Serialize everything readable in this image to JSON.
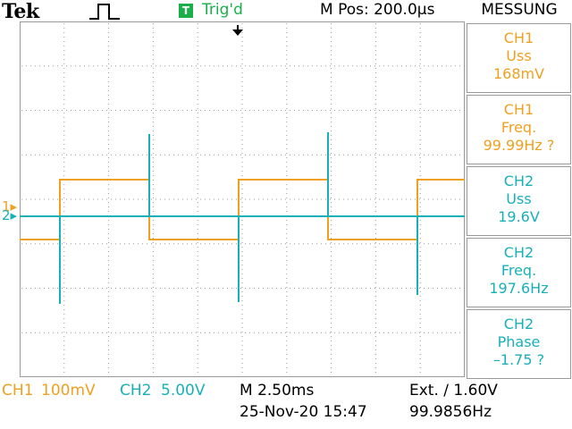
{
  "header": {
    "brand": "Tek",
    "trigger_status_icon": "T",
    "trigger_status": "Trig'd",
    "position": "M Pos: 200.0µs",
    "menu_title": "MESSUNG"
  },
  "colors": {
    "ch1": "#f0a020",
    "ch2": "#18b0b8",
    "trig": "#19b04a"
  },
  "measurements": [
    {
      "channel": "CH1",
      "label": "Uss",
      "value": "168mV"
    },
    {
      "channel": "CH1",
      "label": "Freq.",
      "value": "99.99Hz ?"
    },
    {
      "channel": "CH2",
      "label": "Uss",
      "value": "19.6V"
    },
    {
      "channel": "CH2",
      "label": "Freq.",
      "value": "197.6Hz"
    },
    {
      "channel": "CH2",
      "label": "Phase",
      "value": "–1.75 ?"
    }
  ],
  "markers": {
    "ch1": "1",
    "ch2": "2"
  },
  "footer": {
    "ch1_label": "CH1",
    "ch1_scale": "100mV",
    "ch2_label": "CH2",
    "ch2_scale": "5.00V",
    "timebase": "M 2.50ms",
    "date": "25-Nov-20 15:47",
    "trigger": "Ext. ∕ 1.60V",
    "frequency": "99.9856Hz"
  }
}
